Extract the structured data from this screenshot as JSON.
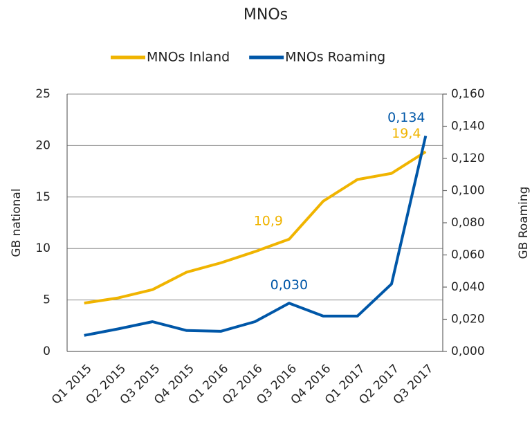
{
  "chart_data": {
    "type": "line",
    "title": "MNOs",
    "ylabel": "GB national",
    "y2label": "GB Roaming",
    "categories": [
      "Q1 2015",
      "Q2 2015",
      "Q3 2015",
      "Q4 2015",
      "Q1 2016",
      "Q2 2016",
      "Q3 2016",
      "Q4 2016",
      "Q1 2017",
      "Q2 2017",
      "Q3 2017"
    ],
    "series": [
      {
        "name": "MNOs Inland",
        "color": "#f0b400",
        "values": [
          4.7,
          5.2,
          6.0,
          7.7,
          8.6,
          9.7,
          10.9,
          14.6,
          16.7,
          17.3,
          19.4
        ],
        "value_labels": [
          null,
          null,
          null,
          null,
          null,
          null,
          "10,9",
          null,
          null,
          null,
          "19,4"
        ]
      },
      {
        "name": "MNOs Roaming",
        "color": "#0057a8",
        "axis": "y2",
        "values": [
          0.01,
          0.014,
          0.0185,
          0.013,
          0.0125,
          0.0185,
          0.03,
          0.022,
          0.022,
          0.042,
          0.134
        ],
        "value_labels": [
          null,
          null,
          null,
          null,
          null,
          null,
          "0,030",
          null,
          null,
          null,
          "0,134"
        ]
      }
    ],
    "ylim": [
      0,
      25
    ],
    "yticks": [
      0,
      5,
      10,
      15,
      20,
      25
    ],
    "y2lim": [
      0,
      0.16
    ],
    "y2ticks": [
      {
        "value": 0,
        "label": "0,000"
      },
      {
        "value": 0.02,
        "label": "0,020"
      },
      {
        "value": 0.04,
        "label": "0,040"
      },
      {
        "value": 0.06,
        "label": "0,060"
      },
      {
        "value": 0.08,
        "label": "0,080"
      },
      {
        "value": 0.1,
        "label": "0,100"
      },
      {
        "value": 0.12,
        "label": "0,120"
      },
      {
        "value": 0.14,
        "label": "0,140"
      },
      {
        "value": 0.16,
        "label": "0,160"
      }
    ],
    "grid": true,
    "legend": "top"
  }
}
